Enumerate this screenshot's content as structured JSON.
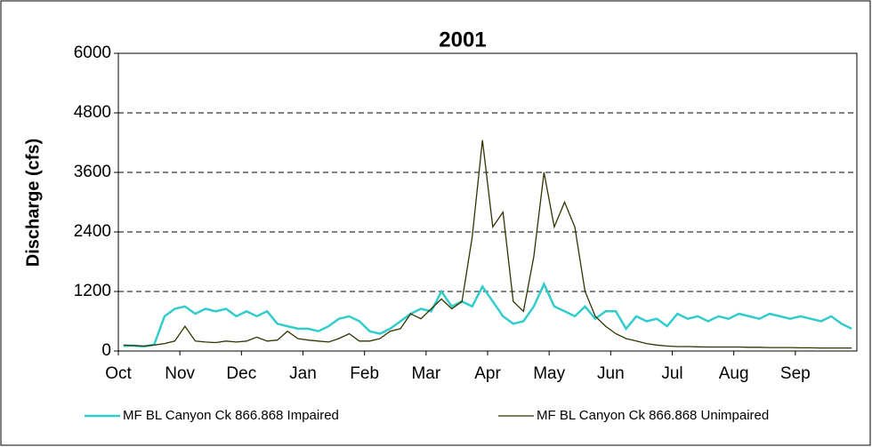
{
  "chart_data": {
    "type": "line",
    "title": "2001",
    "y_label": "Discharge (cfs)",
    "categories": [
      "Oct",
      null,
      null,
      null,
      null,
      null,
      "Nov",
      null,
      null,
      null,
      null,
      null,
      "Dec",
      null,
      null,
      null,
      null,
      null,
      "Jan",
      null,
      null,
      null,
      null,
      null,
      "Feb",
      null,
      null,
      null,
      null,
      null,
      "Mar",
      null,
      null,
      null,
      null,
      null,
      "Apr",
      null,
      null,
      null,
      null,
      null,
      "May",
      null,
      null,
      null,
      null,
      null,
      "Jun",
      null,
      null,
      null,
      null,
      null,
      "Jul",
      null,
      null,
      null,
      null,
      null,
      "Aug",
      null,
      null,
      null,
      null,
      null,
      "Sep",
      null,
      null,
      null,
      null,
      null
    ],
    "series": [
      {
        "name": "MF BL Canyon Ck 866.868 Impaired",
        "color": "#33cccc",
        "values": [
          100,
          110,
          90,
          130,
          700,
          850,
          900,
          750,
          850,
          800,
          850,
          700,
          800,
          700,
          800,
          550,
          500,
          450,
          450,
          400,
          500,
          650,
          700,
          600,
          400,
          350,
          450,
          600,
          750,
          850,
          800,
          1200,
          900,
          1000,
          900,
          1300,
          1000,
          700,
          550,
          600,
          900,
          1350,
          900,
          800,
          700,
          900,
          650,
          800,
          800,
          450,
          700,
          600,
          650,
          500,
          750,
          650,
          700,
          600,
          700,
          650,
          750,
          700,
          650,
          750,
          700,
          650,
          700,
          650,
          600,
          700,
          550,
          450
        ]
      },
      {
        "name": "MF BL Canyon Ck 866.868 Unimpaired",
        "color": "#333300",
        "values": [
          120,
          110,
          100,
          120,
          150,
          200,
          500,
          200,
          180,
          170,
          200,
          180,
          200,
          280,
          200,
          220,
          400,
          250,
          220,
          200,
          180,
          250,
          350,
          200,
          200,
          250,
          400,
          450,
          750,
          650,
          850,
          1050,
          850,
          1000,
          2300,
          4250,
          2500,
          2800,
          1000,
          800,
          1900,
          3600,
          2500,
          3000,
          2500,
          1200,
          700,
          500,
          350,
          250,
          200,
          150,
          120,
          100,
          90,
          90,
          85,
          80,
          80,
          80,
          80,
          75,
          75,
          70,
          70,
          70,
          65,
          65,
          60,
          60,
          60,
          60
        ]
      }
    ],
    "ylim": [
      0,
      6000
    ],
    "yticks": [
      0,
      1200,
      2400,
      3600,
      4800,
      6000
    ],
    "grid": true
  }
}
